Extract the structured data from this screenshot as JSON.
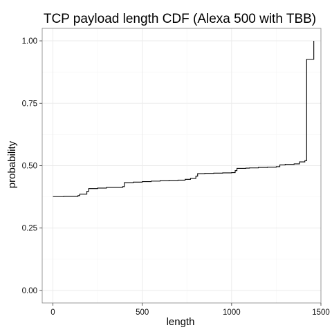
{
  "chart_data": {
    "type": "line",
    "title": "TCP payload length CDF (Alexa 500 with TBB)",
    "xlabel": "length",
    "ylabel": "probability",
    "xlim": [
      -60,
      1500
    ],
    "ylim": [
      -0.05,
      1.05
    ],
    "x_ticks": [
      0,
      500,
      1000,
      1500
    ],
    "y_ticks": [
      0.0,
      0.25,
      0.5,
      0.75,
      1.0
    ],
    "x_tick_labels": [
      "0",
      "500",
      "1000",
      "1500"
    ],
    "y_tick_labels": [
      "0.00",
      "0.25",
      "0.50",
      "0.75",
      "1.00"
    ],
    "grid": true,
    "step": true,
    "series": [
      {
        "x": [
          0,
          60,
          140,
          150,
          190,
          200,
          250,
          300,
          390,
          400,
          450,
          500,
          550,
          600,
          650,
          700,
          740,
          770,
          800,
          810,
          850,
          900,
          950,
          1000,
          1020,
          1030,
          1080,
          1100,
          1150,
          1200,
          1250,
          1270,
          1300,
          1350,
          1380,
          1410,
          1420,
          1450,
          1460
        ],
        "y": [
          0.376,
          0.377,
          0.38,
          0.386,
          0.397,
          0.408,
          0.41,
          0.413,
          0.416,
          0.432,
          0.434,
          0.436,
          0.438,
          0.44,
          0.441,
          0.442,
          0.445,
          0.449,
          0.458,
          0.468,
          0.469,
          0.47,
          0.471,
          0.472,
          0.48,
          0.489,
          0.49,
          0.491,
          0.493,
          0.494,
          0.496,
          0.503,
          0.505,
          0.507,
          0.515,
          0.52,
          0.926,
          0.926,
          1.0
        ]
      }
    ]
  }
}
